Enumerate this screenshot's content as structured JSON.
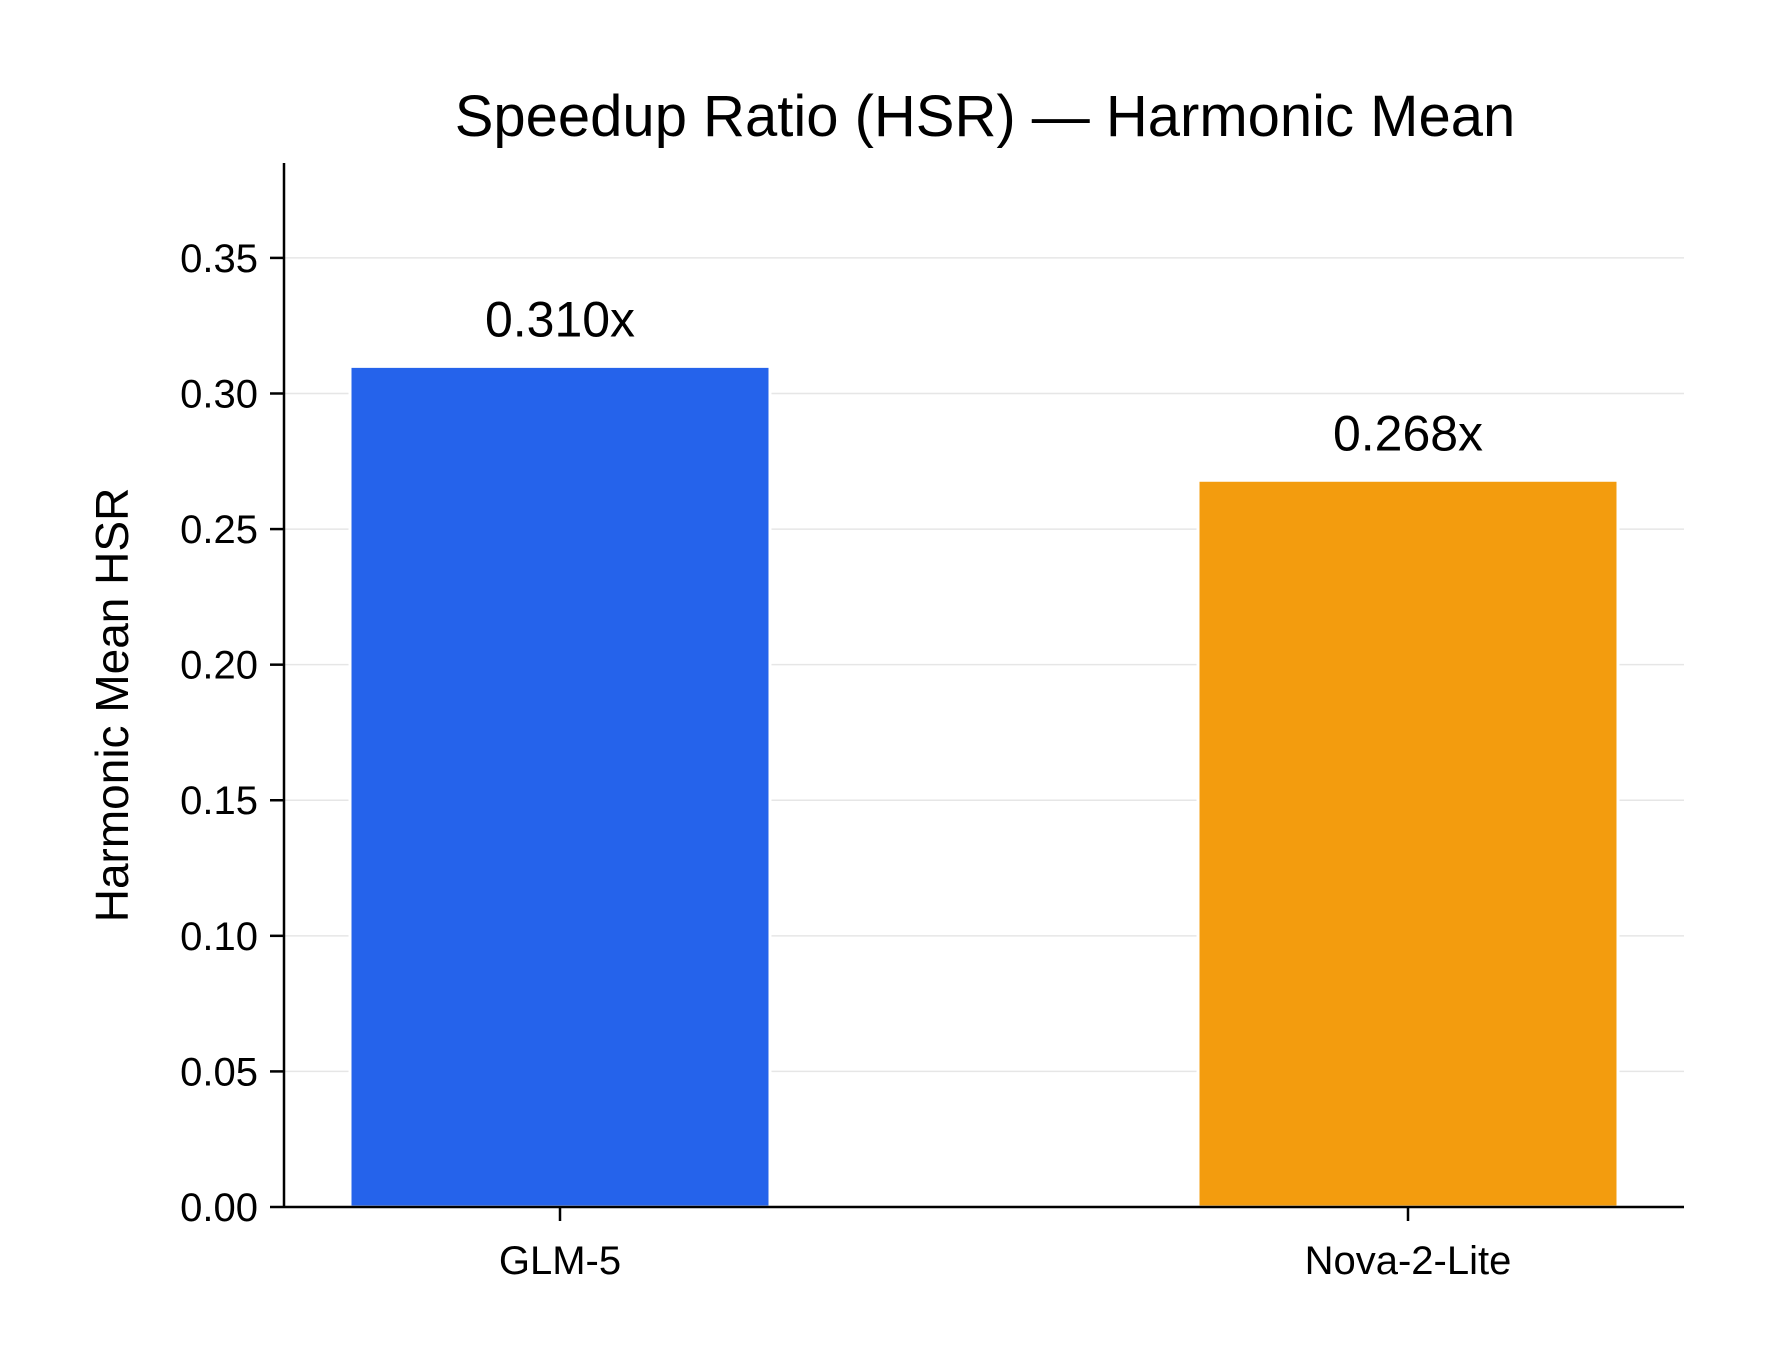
{
  "chart_data": {
    "type": "bar",
    "title": "Speedup Ratio (HSR) — Harmonic Mean",
    "xlabel": "",
    "ylabel": "Harmonic Mean HSR",
    "categories": [
      "GLM-5",
      "Nova-2-Lite"
    ],
    "values": [
      0.31,
      0.268
    ],
    "value_labels": [
      "0.310x",
      "0.268x"
    ],
    "colors": [
      "#2563eb",
      "#f39c0e"
    ],
    "ylim": [
      0,
      0.385
    ],
    "yticks": [
      0.0,
      0.05,
      0.1,
      0.15,
      0.2,
      0.25,
      0.3,
      0.35
    ],
    "ytick_labels": [
      "0.00",
      "0.05",
      "0.10",
      "0.15",
      "0.20",
      "0.25",
      "0.30",
      "0.35"
    ],
    "grid": "horizontal",
    "legend": "none"
  }
}
